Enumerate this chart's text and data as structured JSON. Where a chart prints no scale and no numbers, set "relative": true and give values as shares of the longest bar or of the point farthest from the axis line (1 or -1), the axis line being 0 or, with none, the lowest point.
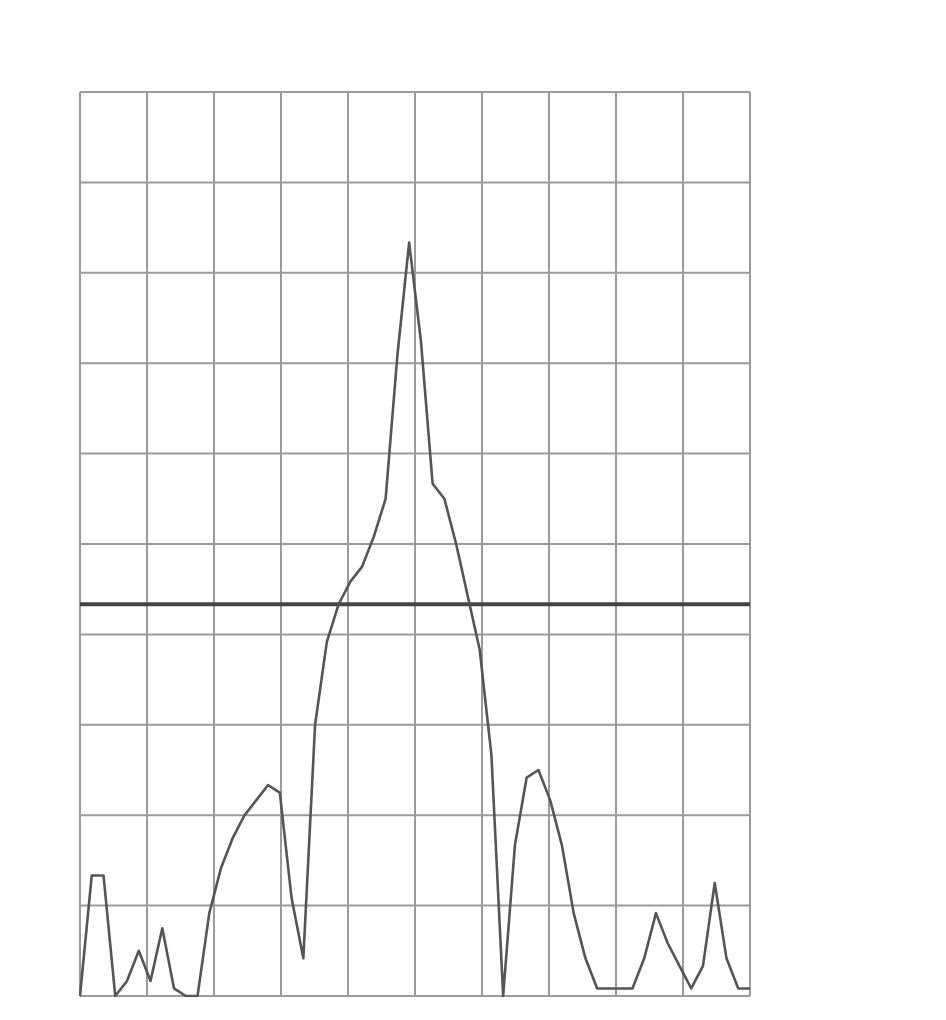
{
  "chart_data": {
    "type": "line",
    "relative": true,
    "grid": true,
    "marker": "none",
    "line_style": "solid",
    "categories": [
      null,
      null,
      null,
      null,
      null,
      null,
      null,
      null,
      null,
      null,
      null,
      null,
      null,
      null,
      null,
      null,
      null,
      null,
      null,
      null,
      null,
      null,
      null,
      null,
      null,
      null,
      null,
      null,
      null,
      null,
      null,
      null,
      null,
      null,
      null,
      null,
      null,
      null,
      null,
      null,
      null,
      null,
      null,
      null,
      null,
      null,
      null,
      null,
      null,
      null,
      null,
      null,
      null,
      null,
      null,
      null,
      null,
      null
    ],
    "series": [
      {
        "color": "#555555",
        "values": [
          0,
          0.16,
          0.16,
          0,
          0.02,
          0.06,
          0.02,
          0.09,
          0.01,
          0,
          0,
          0.11,
          0.17,
          0.21,
          0.24,
          0.26,
          0.28,
          0.27,
          0.13,
          0.05,
          0.36,
          0.47,
          0.52,
          0.55,
          0.57,
          0.61,
          0.66,
          0.85,
          1,
          0.87,
          0.68,
          0.66,
          0.6,
          0.53,
          0.46,
          0.32,
          0,
          0.2,
          0.29,
          0.3,
          0.26,
          0.2,
          0.11,
          0.05,
          0.01,
          0.01,
          0.01,
          0.01,
          0.05,
          0.11,
          0.07,
          0.04,
          0.01,
          0.04,
          0.15,
          0.05,
          0.01,
          0.01
        ]
      }
    ],
    "ref_lines": [
      {
        "axis": "y",
        "value": 0.52,
        "color": "#444444"
      }
    ]
  }
}
